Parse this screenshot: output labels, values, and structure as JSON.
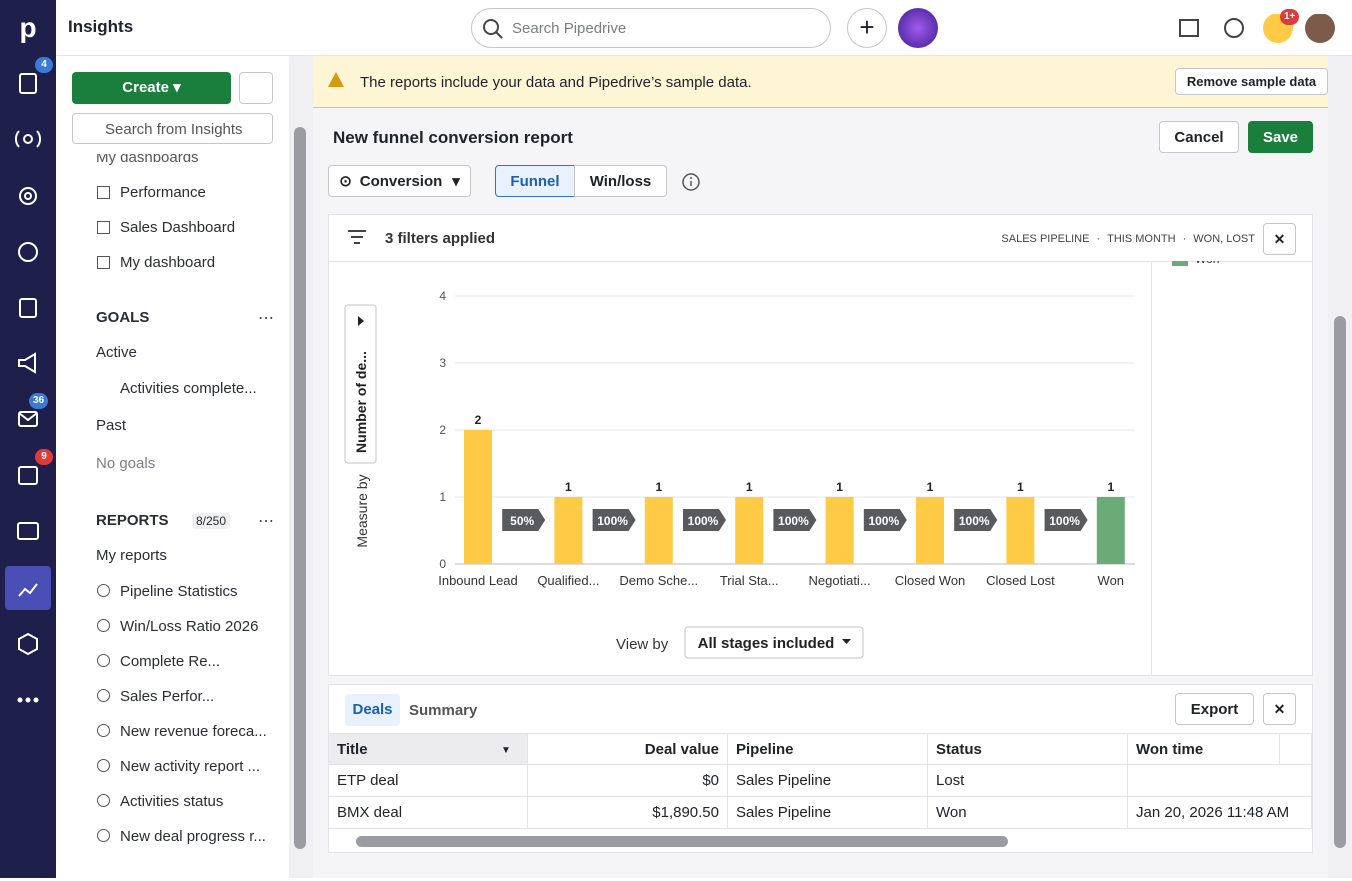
{
  "topbar": {
    "title": "Insights",
    "search_placeholder": "Search Pipedrive",
    "notification_badge": "1+"
  },
  "rail_badges": [
    "4",
    "36",
    "9"
  ],
  "sidebar": {
    "create": "Create",
    "search_placeholder": "Search from Insights",
    "dashboards_header": "My dashboards",
    "dashboards": [
      "Performance",
      "Sales Dashboard",
      "My dashboard"
    ],
    "goals_header": "GOALS",
    "goals_active": "Active",
    "goals_active_items": [
      "Activities complete..."
    ],
    "goals_past": "Past",
    "no_goals": "No goals",
    "reports_header": "REPORTS",
    "reports_count": "8/250",
    "my_reports": "My reports",
    "reports": [
      "Pipeline Statistics",
      "Win/Loss Ratio 2026",
      "Complete Re...",
      "Sales Perfor...",
      "New revenue foreca...",
      "New activity report ...",
      "Activities status",
      "New deal progress r..."
    ]
  },
  "banner": {
    "text": "The reports include your data and Pipedrive’s sample data.",
    "button": "Remove sample data"
  },
  "report": {
    "title": "New funnel conversion report",
    "cancel": "Cancel",
    "save": "Save",
    "measure": "Conversion",
    "tabs": [
      "Funnel",
      "Win/loss"
    ],
    "filters": "3 filters applied",
    "filter_tags": [
      "SALES PIPELINE",
      "THIS MONTH",
      "WON, LOST"
    ],
    "view_by_label": "View by",
    "view_by": "All stages included"
  },
  "chart_data": {
    "type": "bar",
    "y_label": "Measure by",
    "measure_button": "Number of de...",
    "categories": [
      "Inbound Lead",
      "Qualified...",
      "Demo Sche...",
      "Trial Sta...",
      "Negotiati...",
      "Closed Won",
      "Closed Lost",
      "Won"
    ],
    "values": [
      2,
      1,
      1,
      1,
      1,
      1,
      1,
      1
    ],
    "colors": [
      "#ffcb47",
      "#ffcb47",
      "#ffcb47",
      "#ffcb47",
      "#ffcb47",
      "#ffcb47",
      "#ffcb47",
      "#6aab78"
    ],
    "conversion_values": [
      50,
      100,
      100,
      100,
      100,
      100,
      100
    ],
    "conversion_labels": [
      "50%",
      "100%",
      "100%",
      "100%",
      "100%",
      "100%",
      "100%"
    ],
    "ylim": [
      0,
      4
    ],
    "yticks": [
      0,
      1,
      2,
      3,
      4
    ],
    "grid": true,
    "legend": [
      {
        "name": "Won",
        "color": "#6aab78"
      }
    ]
  },
  "table": {
    "tabs": [
      "Deals",
      "Summary"
    ],
    "export": "Export",
    "columns": [
      "Title",
      "Deal value",
      "Pipeline",
      "Status",
      "Won time"
    ],
    "rows": [
      [
        "ETP deal",
        "$0",
        "Sales Pipeline",
        "Lost",
        null
      ],
      [
        "BMX deal",
        "$1,890.50",
        "Sales Pipeline",
        "Won",
        "Jan 20, 2026 11:48 AM"
      ]
    ]
  }
}
